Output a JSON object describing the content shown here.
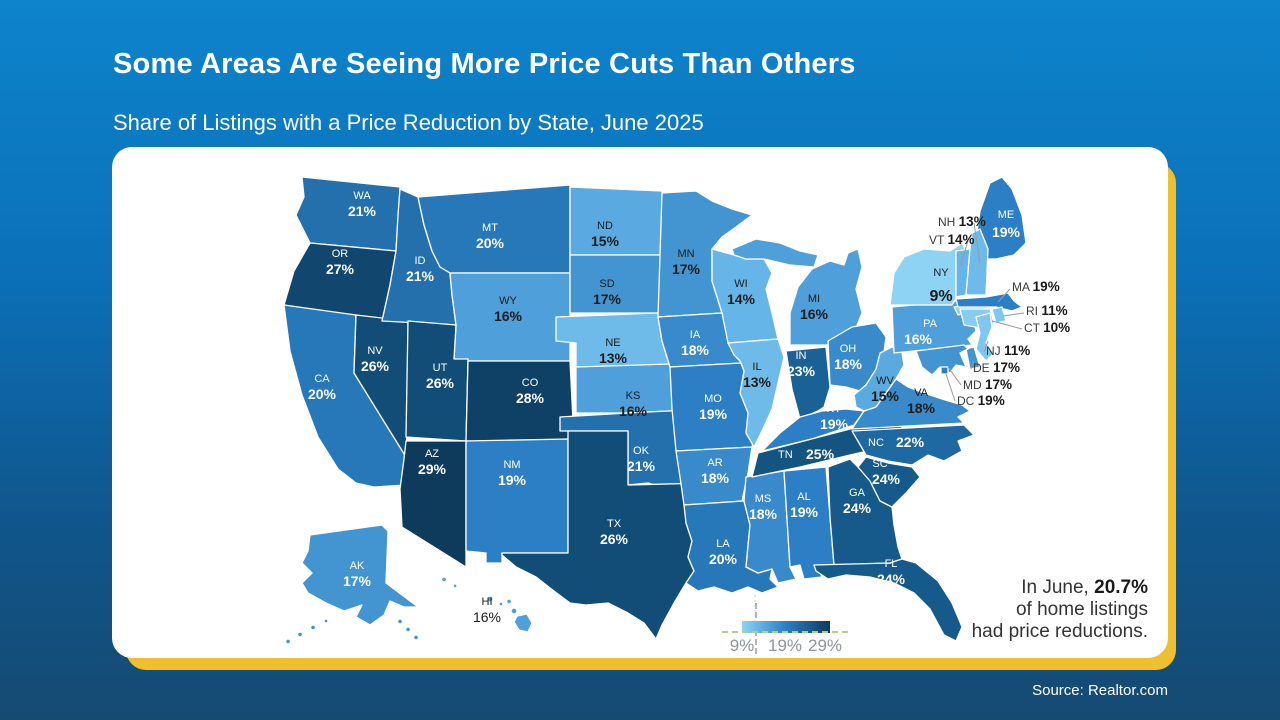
{
  "slide": {
    "title": "Some Areas Are Seeing More Price Cuts Than Others",
    "subtitle": "Share of Listings with a Price Reduction by State, June 2025",
    "source": "Source: Realtor.com"
  },
  "annotation": {
    "line1_prefix": "In June, ",
    "line1_bold": "20.7%",
    "line2": "of home listings",
    "line3": "had price reductions."
  },
  "legend": {
    "labels": [
      "9%",
      "19%",
      "29%"
    ]
  },
  "colors": {
    "background_top": "#0d84cc",
    "background_bottom": "#154a72",
    "card": "#ffffff",
    "card_shadow": "#eec02f",
    "map_border": "#ffffff",
    "label_light": "#ffffff",
    "label_dark": "#1c1c1c",
    "callout_text": "#1a1a1a",
    "leader_line": "#9a9a9a"
  },
  "chart_data": {
    "type": "choropleth",
    "title": "Share of Listings with a Price Reduction by State, June 2025",
    "unit": "%",
    "min": 9,
    "max": 29,
    "national_value": 20.7,
    "legend_ticks": [
      9,
      19,
      29
    ],
    "scale_stops": [
      [
        9,
        "#8ed3f4"
      ],
      [
        14,
        "#66b5e8"
      ],
      [
        19,
        "#2c7fc4"
      ],
      [
        24,
        "#155a8a"
      ],
      [
        29,
        "#0e3a5c"
      ]
    ],
    "states": [
      {
        "abbr": "WA",
        "value": 21
      },
      {
        "abbr": "OR",
        "value": 27
      },
      {
        "abbr": "CA",
        "value": 20
      },
      {
        "abbr": "NV",
        "value": 26
      },
      {
        "abbr": "ID",
        "value": 21
      },
      {
        "abbr": "MT",
        "value": 20
      },
      {
        "abbr": "WY",
        "value": 16
      },
      {
        "abbr": "UT",
        "value": 26
      },
      {
        "abbr": "CO",
        "value": 28
      },
      {
        "abbr": "AZ",
        "value": 29
      },
      {
        "abbr": "NM",
        "value": 19
      },
      {
        "abbr": "ND",
        "value": 15
      },
      {
        "abbr": "SD",
        "value": 17
      },
      {
        "abbr": "NE",
        "value": 13
      },
      {
        "abbr": "KS",
        "value": 16
      },
      {
        "abbr": "OK",
        "value": 21
      },
      {
        "abbr": "TX",
        "value": 26
      },
      {
        "abbr": "MN",
        "value": 17
      },
      {
        "abbr": "IA",
        "value": 18
      },
      {
        "abbr": "MO",
        "value": 19
      },
      {
        "abbr": "AR",
        "value": 18
      },
      {
        "abbr": "LA",
        "value": 20
      },
      {
        "abbr": "WI",
        "value": 14
      },
      {
        "abbr": "IL",
        "value": 13
      },
      {
        "abbr": "MS",
        "value": 18
      },
      {
        "abbr": "MI",
        "value": 16
      },
      {
        "abbr": "IN",
        "value": 23
      },
      {
        "abbr": "OH",
        "value": 18
      },
      {
        "abbr": "KY",
        "value": 19
      },
      {
        "abbr": "TN",
        "value": 25
      },
      {
        "abbr": "AL",
        "value": 19
      },
      {
        "abbr": "GA",
        "value": 24
      },
      {
        "abbr": "FL",
        "value": 24
      },
      {
        "abbr": "SC",
        "value": 24
      },
      {
        "abbr": "NC",
        "value": 22
      },
      {
        "abbr": "VA",
        "value": 18
      },
      {
        "abbr": "WV",
        "value": 15
      },
      {
        "abbr": "PA",
        "value": 16
      },
      {
        "abbr": "NY",
        "value": 9
      },
      {
        "abbr": "ME",
        "value": 19
      },
      {
        "abbr": "VT",
        "value": 14
      },
      {
        "abbr": "NH",
        "value": 13
      },
      {
        "abbr": "MA",
        "value": 19
      },
      {
        "abbr": "RI",
        "value": 11
      },
      {
        "abbr": "CT",
        "value": 10
      },
      {
        "abbr": "NJ",
        "value": 11
      },
      {
        "abbr": "DE",
        "value": 17
      },
      {
        "abbr": "MD",
        "value": 17
      },
      {
        "abbr": "DC",
        "value": 19
      },
      {
        "abbr": "AK",
        "value": 17
      },
      {
        "abbr": "HI",
        "value": 16
      }
    ]
  }
}
